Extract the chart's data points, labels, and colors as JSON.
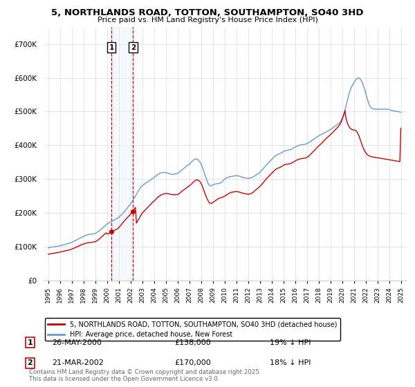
{
  "title": "5, NORTHLANDS ROAD, TOTTON, SOUTHAMPTON, SO40 3HD",
  "subtitle": "Price paid vs. HM Land Registry's House Price Index (HPI)",
  "legend_red": "5, NORTHLANDS ROAD, TOTTON, SOUTHAMPTON, SO40 3HD (detached house)",
  "legend_blue": "HPI: Average price, detached house, New Forest",
  "footer": "Contains HM Land Registry data © Crown copyright and database right 2025.\nThis data is licensed under the Open Government Licence v3.0.",
  "transactions": [
    {
      "num": 1,
      "date": "26-MAY-2000",
      "price": "£138,000",
      "hpi_rel": "19% ↓ HPI",
      "year": 2000.38
    },
    {
      "num": 2,
      "date": "21-MAR-2002",
      "price": "£170,000",
      "hpi_rel": "18% ↓ HPI",
      "year": 2002.21
    }
  ],
  "vline_color": "#cc0000",
  "shade_color": "#ddeeff",
  "red_line_color": "#cc0000",
  "blue_line_color": "#6699cc",
  "ylim": [
    0,
    750000
  ],
  "yticks": [
    0,
    100000,
    200000,
    300000,
    400000,
    500000,
    600000,
    700000
  ],
  "xlim_start": 1994.6,
  "xlim_end": 2025.5,
  "hpi_years": [
    1995.0,
    1995.08,
    1995.17,
    1995.25,
    1995.33,
    1995.42,
    1995.5,
    1995.58,
    1995.67,
    1995.75,
    1995.83,
    1995.92,
    1996.0,
    1996.08,
    1996.17,
    1996.25,
    1996.33,
    1996.42,
    1996.5,
    1996.58,
    1996.67,
    1996.75,
    1996.83,
    1996.92,
    1997.0,
    1997.08,
    1997.17,
    1997.25,
    1997.33,
    1997.42,
    1997.5,
    1997.58,
    1997.67,
    1997.75,
    1997.83,
    1997.92,
    1998.0,
    1998.08,
    1998.17,
    1998.25,
    1998.33,
    1998.42,
    1998.5,
    1998.58,
    1998.67,
    1998.75,
    1998.83,
    1998.92,
    1999.0,
    1999.08,
    1999.17,
    1999.25,
    1999.33,
    1999.42,
    1999.5,
    1999.58,
    1999.67,
    1999.75,
    1999.83,
    1999.92,
    2000.0,
    2000.08,
    2000.17,
    2000.25,
    2000.33,
    2000.42,
    2000.5,
    2000.58,
    2000.67,
    2000.75,
    2000.83,
    2000.92,
    2001.0,
    2001.08,
    2001.17,
    2001.25,
    2001.33,
    2001.42,
    2001.5,
    2001.58,
    2001.67,
    2001.75,
    2001.83,
    2001.92,
    2002.0,
    2002.08,
    2002.17,
    2002.25,
    2002.33,
    2002.42,
    2002.5,
    2002.58,
    2002.67,
    2002.75,
    2002.83,
    2002.92,
    2003.0,
    2003.08,
    2003.17,
    2003.25,
    2003.33,
    2003.42,
    2003.5,
    2003.58,
    2003.67,
    2003.75,
    2003.83,
    2003.92,
    2004.0,
    2004.08,
    2004.17,
    2004.25,
    2004.33,
    2004.42,
    2004.5,
    2004.58,
    2004.67,
    2004.75,
    2004.83,
    2004.92,
    2005.0,
    2005.08,
    2005.17,
    2005.25,
    2005.33,
    2005.42,
    2005.5,
    2005.58,
    2005.67,
    2005.75,
    2005.83,
    2005.92,
    2006.0,
    2006.08,
    2006.17,
    2006.25,
    2006.33,
    2006.42,
    2006.5,
    2006.58,
    2006.67,
    2006.75,
    2006.83,
    2006.92,
    2007.0,
    2007.08,
    2007.17,
    2007.25,
    2007.33,
    2007.42,
    2007.5,
    2007.58,
    2007.67,
    2007.75,
    2007.83,
    2007.92,
    2008.0,
    2008.08,
    2008.17,
    2008.25,
    2008.33,
    2008.42,
    2008.5,
    2008.58,
    2008.67,
    2008.75,
    2008.83,
    2008.92,
    2009.0,
    2009.08,
    2009.17,
    2009.25,
    2009.33,
    2009.42,
    2009.5,
    2009.58,
    2009.67,
    2009.75,
    2009.83,
    2009.92,
    2010.0,
    2010.08,
    2010.17,
    2010.25,
    2010.33,
    2010.42,
    2010.5,
    2010.58,
    2010.67,
    2010.75,
    2010.83,
    2010.92,
    2011.0,
    2011.08,
    2011.17,
    2011.25,
    2011.33,
    2011.42,
    2011.5,
    2011.58,
    2011.67,
    2011.75,
    2011.83,
    2011.92,
    2012.0,
    2012.08,
    2012.17,
    2012.25,
    2012.33,
    2012.42,
    2012.5,
    2012.58,
    2012.67,
    2012.75,
    2012.83,
    2012.92,
    2013.0,
    2013.08,
    2013.17,
    2013.25,
    2013.33,
    2013.42,
    2013.5,
    2013.58,
    2013.67,
    2013.75,
    2013.83,
    2013.92,
    2014.0,
    2014.08,
    2014.17,
    2014.25,
    2014.33,
    2014.42,
    2014.5,
    2014.58,
    2014.67,
    2014.75,
    2014.83,
    2014.92,
    2015.0,
    2015.08,
    2015.17,
    2015.25,
    2015.33,
    2015.42,
    2015.5,
    2015.58,
    2015.67,
    2015.75,
    2015.83,
    2015.92,
    2016.0,
    2016.08,
    2016.17,
    2016.25,
    2016.33,
    2016.42,
    2016.5,
    2016.58,
    2016.67,
    2016.75,
    2016.83,
    2016.92,
    2017.0,
    2017.08,
    2017.17,
    2017.25,
    2017.33,
    2017.42,
    2017.5,
    2017.58,
    2017.67,
    2017.75,
    2017.83,
    2017.92,
    2018.0,
    2018.08,
    2018.17,
    2018.25,
    2018.33,
    2018.42,
    2018.5,
    2018.58,
    2018.67,
    2018.75,
    2018.83,
    2018.92,
    2019.0,
    2019.08,
    2019.17,
    2019.25,
    2019.33,
    2019.42,
    2019.5,
    2019.58,
    2019.67,
    2019.75,
    2019.83,
    2019.92,
    2020.0,
    2020.08,
    2020.17,
    2020.25,
    2020.33,
    2020.42,
    2020.5,
    2020.58,
    2020.67,
    2020.75,
    2020.83,
    2020.92,
    2021.0,
    2021.08,
    2021.17,
    2021.25,
    2021.33,
    2021.42,
    2021.5,
    2021.58,
    2021.67,
    2021.75,
    2021.83,
    2021.92,
    2022.0,
    2022.08,
    2022.17,
    2022.25,
    2022.33,
    2022.42,
    2022.5,
    2022.58,
    2022.67,
    2022.75,
    2022.83,
    2022.92,
    2023.0,
    2023.08,
    2023.17,
    2023.25,
    2023.33,
    2023.42,
    2023.5,
    2023.58,
    2023.67,
    2023.75,
    2023.83,
    2023.92,
    2024.0,
    2024.08,
    2024.17,
    2024.25,
    2024.33,
    2024.42,
    2024.5,
    2024.58,
    2024.67,
    2024.75,
    2024.83,
    2024.92,
    2025.0
  ],
  "hpi_vals": [
    97000,
    97500,
    98000,
    98500,
    99000,
    99500,
    100000,
    100500,
    101000,
    101500,
    102000,
    102500,
    103000,
    103800,
    104600,
    105400,
    106200,
    107000,
    107800,
    108600,
    109400,
    110200,
    111000,
    112000,
    113000,
    114500,
    116000,
    117500,
    119000,
    120500,
    122000,
    123500,
    125000,
    126500,
    128000,
    129500,
    131000,
    132500,
    133500,
    134500,
    135500,
    136000,
    136500,
    137000,
    137500,
    138000,
    138500,
    139000,
    139500,
    141000,
    143000,
    145000,
    147000,
    149500,
    152000,
    154500,
    157000,
    159500,
    162000,
    165000,
    168000,
    169500,
    171000,
    172500,
    174000,
    175500,
    177000,
    178500,
    180000,
    181500,
    183000,
    185000,
    187000,
    190000,
    193000,
    196000,
    199000,
    202000,
    205500,
    209000,
    212500,
    216000,
    219500,
    223000,
    227000,
    231500,
    236000,
    240500,
    245000,
    250000,
    255000,
    260000,
    265000,
    270000,
    274000,
    278000,
    281000,
    283000,
    285000,
    287000,
    289000,
    291000,
    293000,
    295000,
    297000,
    299000,
    301000,
    303000,
    305000,
    307500,
    310000,
    312000,
    314000,
    316000,
    317500,
    318500,
    319000,
    319500,
    319800,
    319900,
    319500,
    319000,
    318000,
    317000,
    316000,
    315000,
    314000,
    314000,
    314500,
    315000,
    315500,
    316000,
    317000,
    319000,
    321000,
    323500,
    326000,
    328500,
    331000,
    333500,
    336000,
    338000,
    340000,
    342000,
    344000,
    347000,
    350000,
    353000,
    356000,
    358000,
    359500,
    360000,
    359000,
    357000,
    354000,
    350000,
    345000,
    338000,
    330000,
    322000,
    313000,
    304000,
    296000,
    289000,
    284000,
    281000,
    280000,
    281000,
    283000,
    284500,
    285500,
    286000,
    286500,
    287000,
    287500,
    288000,
    289000,
    291000,
    294000,
    297000,
    300000,
    302000,
    304000,
    305000,
    306000,
    307000,
    307500,
    308000,
    308500,
    309000,
    309500,
    310000,
    310500,
    310000,
    309500,
    309000,
    308000,
    307000,
    306000,
    305000,
    304500,
    304000,
    303500,
    303000,
    302500,
    303000,
    303500,
    304000,
    305000,
    306500,
    308000,
    310000,
    312000,
    314000,
    316000,
    318000,
    320000,
    323000,
    326000,
    329500,
    333000,
    336500,
    340000,
    343000,
    346000,
    349000,
    352000,
    355000,
    358000,
    361000,
    364000,
    367000,
    369500,
    371500,
    373000,
    374000,
    375000,
    376500,
    378000,
    380000,
    382000,
    383500,
    384500,
    385000,
    385500,
    386000,
    386500,
    387000,
    388000,
    389500,
    391000,
    393000,
    395000,
    396500,
    398000,
    399000,
    400000,
    401000,
    401500,
    402000,
    402500,
    403000,
    403500,
    404000,
    405000,
    406500,
    408000,
    410000,
    412000,
    414000,
    416000,
    418000,
    420000,
    422000,
    424000,
    426000,
    428000,
    429500,
    431000,
    432500,
    434000,
    435500,
    437000,
    438500,
    440000,
    441500,
    443000,
    445000,
    447000,
    449000,
    451000,
    453000,
    455000,
    457000,
    459000,
    461000,
    463000,
    465500,
    469000,
    474000,
    480000,
    487000,
    495000,
    505000,
    516000,
    528000,
    540000,
    551000,
    561000,
    569000,
    575000,
    580000,
    585000,
    590000,
    594000,
    597000,
    599000,
    599500,
    598000,
    595000,
    590000,
    583000,
    575000,
    566000,
    556000,
    545000,
    535000,
    526000,
    519000,
    514000,
    511000,
    509000,
    508000,
    507500,
    507000,
    507000,
    507000,
    507000,
    507000,
    507000,
    507000,
    507000,
    507000,
    507000,
    507000,
    507000,
    507000,
    507000,
    506000,
    505000,
    504000,
    503000,
    502500,
    502000,
    501500,
    501000,
    500500,
    500000,
    499500,
    499000,
    498000
  ],
  "red_vals": [
    78000,
    78500,
    79000,
    79500,
    80000,
    80500,
    81000,
    81500,
    82000,
    82500,
    83000,
    83500,
    84000,
    84800,
    85600,
    86400,
    87200,
    87800,
    88400,
    89000,
    89600,
    90200,
    91000,
    92000,
    93000,
    94200,
    95400,
    96600,
    98000,
    99400,
    100800,
    102200,
    103600,
    104800,
    106000,
    107200,
    108400,
    109400,
    110200,
    111000,
    111600,
    112000,
    112400,
    112800,
    113200,
    113600,
    114000,
    114500,
    115000,
    116500,
    118500,
    120500,
    122800,
    125300,
    128000,
    130600,
    133200,
    135800,
    138400,
    141200,
    138000,
    138500,
    140000,
    141500,
    143000,
    144500,
    146000,
    147500,
    149000,
    150500,
    152000,
    154000,
    156500,
    160000,
    163500,
    167000,
    170500,
    174000,
    177500,
    181000,
    184000,
    187000,
    190000,
    193000,
    196000,
    200000,
    204000,
    208000,
    212000,
    216500,
    170000,
    175000,
    180000,
    185000,
    190000,
    195000,
    200000,
    203000,
    206000,
    209000,
    212000,
    215000,
    218000,
    221000,
    224000,
    227000,
    230000,
    233000,
    235000,
    238000,
    241000,
    244000,
    247000,
    249000,
    251000,
    253000,
    254500,
    255800,
    256500,
    257000,
    257500,
    258000,
    257500,
    257000,
    256000,
    255000,
    254500,
    254200,
    254000,
    253800,
    254000,
    254500,
    255000,
    256000,
    258000,
    260500,
    263000,
    265500,
    268000,
    270000,
    272000,
    274000,
    276000,
    278000,
    280000,
    282500,
    285000,
    288000,
    291000,
    294000,
    296000,
    297500,
    298000,
    297000,
    295000,
    292000,
    288000,
    282000,
    274000,
    266000,
    258000,
    250000,
    243000,
    237000,
    232000,
    229000,
    228000,
    229000,
    231000,
    233000,
    235000,
    237000,
    239000,
    241000,
    243000,
    244000,
    245000,
    246000,
    247000,
    248000,
    249500,
    251000,
    253000,
    255000,
    257000,
    259000,
    260000,
    261000,
    261500,
    262000,
    262500,
    263000,
    263500,
    263000,
    262500,
    262000,
    261000,
    260000,
    259000,
    258000,
    257500,
    257000,
    256500,
    256000,
    255500,
    256000,
    256500,
    257500,
    259000,
    261000,
    263500,
    266000,
    268500,
    271000,
    273500,
    276000,
    278500,
    281500,
    284500,
    288000,
    291500,
    295000,
    298500,
    302000,
    305000,
    308000,
    311000,
    314000,
    317000,
    320000,
    323000,
    326000,
    328500,
    330500,
    332000,
    333000,
    334000,
    335500,
    337000,
    339000,
    341000,
    342500,
    343500,
    344000,
    344500,
    345000,
    345500,
    346000,
    347000,
    348500,
    350000,
    352000,
    354000,
    355500,
    357000,
    358000,
    359000,
    360000,
    360500,
    361000,
    361500,
    362000,
    362500,
    363000,
    364000,
    366000,
    368500,
    371000,
    374000,
    377000,
    380000,
    383000,
    386000,
    389000,
    392000,
    395000,
    398000,
    400500,
    403000,
    406000,
    409000,
    412000,
    415000,
    418000,
    421000,
    424000,
    426000,
    428500,
    431000,
    434000,
    437000,
    440000,
    443000,
    446000,
    449000,
    452000,
    455000,
    458500,
    463000,
    469000,
    476000,
    484000,
    493000,
    503000,
    480000,
    470000,
    462000,
    456000,
    452000,
    449000,
    447000,
    446000,
    445500,
    445000,
    444000,
    441000,
    436000,
    430000,
    422000,
    414000,
    405000,
    397000,
    390000,
    384000,
    379000,
    375000,
    372000,
    370000,
    368500,
    367500,
    366500,
    366000,
    365500,
    365000,
    364500,
    364000,
    363500,
    363000,
    362500,
    362000,
    361500,
    361000,
    360500,
    360000,
    359500,
    359000,
    358500,
    358000,
    357500,
    357000,
    356500,
    356000,
    355500,
    355000,
    354500,
    354000,
    353500,
    353000,
    352500,
    352000,
    451000
  ]
}
